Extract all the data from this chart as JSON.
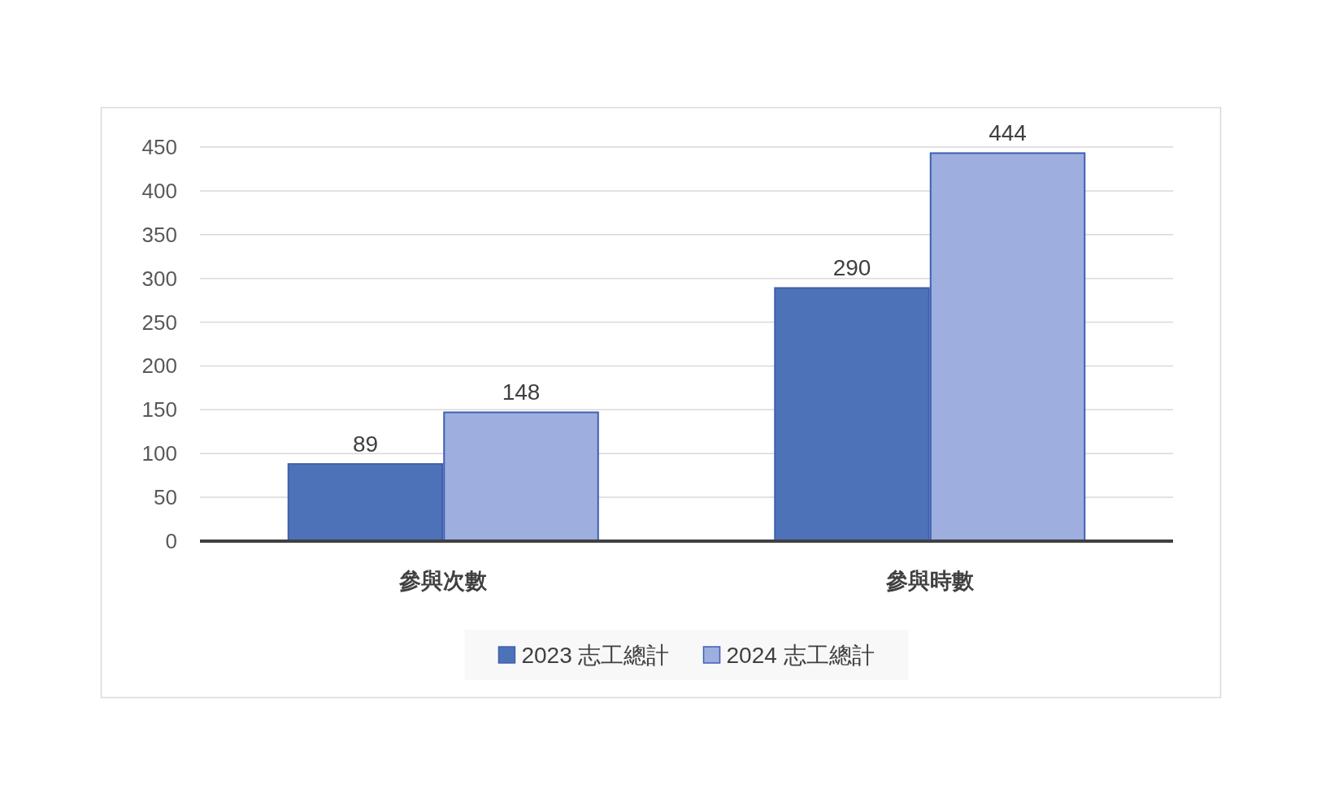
{
  "chart_data": {
    "type": "bar",
    "categories": [
      "參與次數",
      "參與時數"
    ],
    "series": [
      {
        "name": "2023 志工總計",
        "color": "#4e72b8",
        "values": [
          89,
          290
        ]
      },
      {
        "name": "2024 志工總計",
        "color": "#9eaedf",
        "values": [
          148,
          444
        ]
      }
    ],
    "ylim": [
      0,
      450
    ],
    "yticks": [
      0,
      50,
      100,
      150,
      200,
      250,
      300,
      350,
      400,
      450
    ],
    "grid": "y",
    "legend": "bottom",
    "data_labels": true
  }
}
